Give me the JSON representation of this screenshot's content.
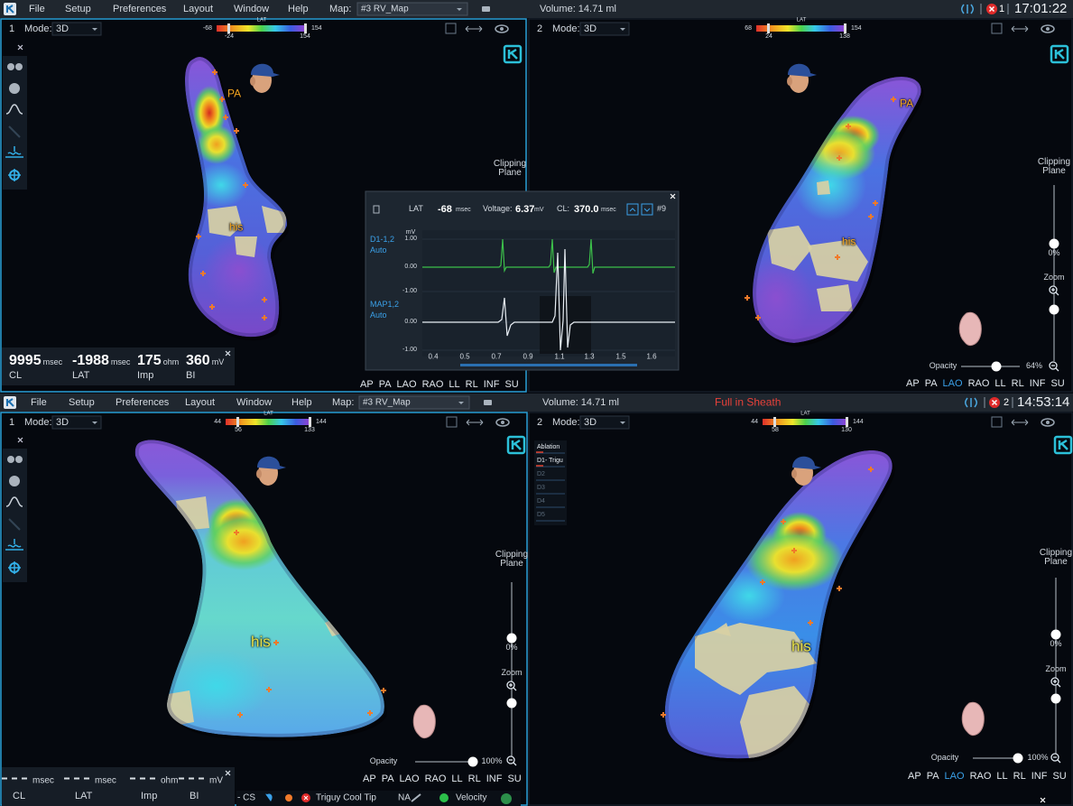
{
  "screens": [
    {
      "menu": [
        "File",
        "Setup",
        "Preferences",
        "Layout",
        "Window",
        "Help"
      ],
      "map_label": "Map:",
      "map_value": "#3 RV_Map",
      "volume": "Volume: 14.71 ml",
      "alert_count": "1",
      "time": "17:01:22",
      "viewports": [
        {
          "number": "1",
          "mode_label": "Mode:",
          "mode": "3D",
          "scale": {
            "label": "LAT",
            "min": "-68",
            "max": "154",
            "low": "-24",
            "high": "154"
          },
          "map_labels": [
            "PA",
            "his"
          ],
          "clipping_plane": "Clipping Plane",
          "views": [
            "AP",
            "PA",
            "LAO",
            "RAO",
            "LL",
            "RL",
            "INF",
            "SU"
          ]
        },
        {
          "number": "2",
          "mode_label": "Mode:",
          "mode": "3D",
          "scale": {
            "label": "LAT",
            "min": "68",
            "max": "154",
            "low": "24",
            "high": "138"
          },
          "map_labels": [
            "PA",
            "his"
          ],
          "clipping_plane": "Clipping Plane",
          "clipping_value": "0%",
          "zoom": "Zoom",
          "opacity_label": "Opacity",
          "opacity_value": "64%",
          "views": [
            "AP",
            "PA",
            "LAO",
            "RAO",
            "LL",
            "RL",
            "INF",
            "SU"
          ]
        }
      ],
      "stats": [
        {
          "value": "9995",
          "unit": "msec",
          "label": "CL"
        },
        {
          "value": "-1988",
          "unit": "msec",
          "label": "LAT"
        },
        {
          "value": "175",
          "unit": "ohm",
          "label": "Imp"
        },
        {
          "value": "360",
          "unit": "mV",
          "label": "BI"
        }
      ],
      "signal_popup": {
        "lat_label": "LAT",
        "lat_value": "-68",
        "lat_unit": "msec",
        "voltage_label": "Voltage:",
        "voltage_value": "6.37",
        "voltage_unit": "mV",
        "cl_label": "CL:",
        "cl_value": "370.0",
        "cl_unit": "msec",
        "beat": "#9",
        "y_unit": "mV",
        "channels": [
          {
            "name": "D1-1,2",
            "mode": "Auto",
            "y_labels": [
              "1.00",
              "0.00",
              "-1.00"
            ]
          },
          {
            "name": "MAP1,2",
            "mode": "Auto",
            "y_labels": [
              "0.00",
              "-1.00"
            ]
          }
        ],
        "x_labels": [
          "0.4",
          "0.5",
          "0.7",
          "0.9",
          "1.1",
          "1.3",
          "1.5",
          "1.6"
        ]
      }
    },
    {
      "menu": [
        "File",
        "Setup",
        "Preferences",
        "Layout",
        "Window",
        "Help"
      ],
      "map_label": "Map:",
      "map_value": "#3 RV_Map",
      "volume": "Volume: 14.71 ml",
      "status": "Full in Sheath",
      "alert_count": "2",
      "time": "14:53:14",
      "viewports": [
        {
          "number": "1",
          "mode_label": "Mode:",
          "mode": "3D",
          "scale": {
            "label": "LAT",
            "min": "44",
            "max": "144",
            "low": "56",
            "high": "133"
          },
          "map_labels": [
            "his"
          ],
          "clipping_plane": "Clipping Plane",
          "clipping_value": "0%",
          "zoom": "Zoom",
          "opacity_label": "Opacity",
          "opacity_value": "100%",
          "views": [
            "AP",
            "PA",
            "LAO",
            "RAO",
            "LL",
            "RL",
            "INF",
            "SU"
          ]
        },
        {
          "number": "2",
          "mode_label": "Mode:",
          "mode": "3D",
          "scale": {
            "label": "LAT",
            "min": "44",
            "max": "144",
            "low": "58",
            "high": "130"
          },
          "map_labels": [
            "his"
          ],
          "clipping_plane": "Clipping Plane",
          "clipping_value": "0%",
          "zoom": "Zoom",
          "opacity_label": "Opacity",
          "opacity_value": "100%",
          "views": [
            "AP",
            "PA",
            "LAO",
            "RAO",
            "LL",
            "RL",
            "INF",
            "SU"
          ]
        }
      ],
      "stats": [
        {
          "unit": "msec",
          "label": "CL"
        },
        {
          "unit": "msec",
          "label": "LAT"
        },
        {
          "unit": "ohm",
          "label": "Imp"
        },
        {
          "unit": "mV",
          "label": "BI"
        }
      ],
      "channels": [
        "Ablation",
        "D1- Trigu",
        "D2",
        "D3",
        "D4",
        "D5"
      ],
      "toolbar": {
        "cs": "- CS",
        "catheter": "Triguy Cool Tip",
        "na": "NA",
        "velocity": "Velocity"
      }
    }
  ]
}
